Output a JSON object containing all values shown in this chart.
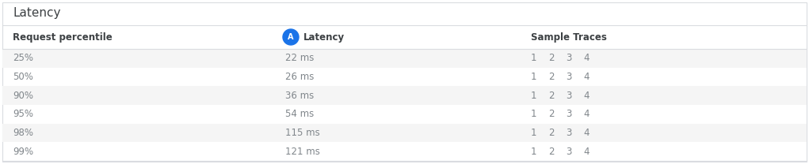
{
  "title": "Latency",
  "col1_header": "Request percentile",
  "col2_icon_label": "A",
  "col2_header": "Latency",
  "col3_header": "Sample Traces",
  "rows": [
    {
      "percentile": "25%",
      "latency": "22 ms"
    },
    {
      "percentile": "50%",
      "latency": "26 ms"
    },
    {
      "percentile": "90%",
      "latency": "36 ms"
    },
    {
      "percentile": "95%",
      "latency": "54 ms"
    },
    {
      "percentile": "98%",
      "latency": "115 ms"
    },
    {
      "percentile": "99%",
      "latency": "121 ms"
    }
  ],
  "sample_traces": [
    "1",
    "2",
    "3",
    "4"
  ],
  "bg_color": "#ffffff",
  "row_odd_color": "#f5f5f5",
  "row_even_color": "#ffffff",
  "border_color": "#dadce0",
  "title_color": "#3c4043",
  "header_text_color": "#3c4043",
  "row_text_color": "#80868b",
  "icon_bg_color": "#1a73e8",
  "icon_text_color": "#ffffff",
  "title_fontsize": 11,
  "header_fontsize": 8.5,
  "row_fontsize": 8.5,
  "fig_width": 10.21,
  "fig_height": 2.08,
  "dpi": 100
}
